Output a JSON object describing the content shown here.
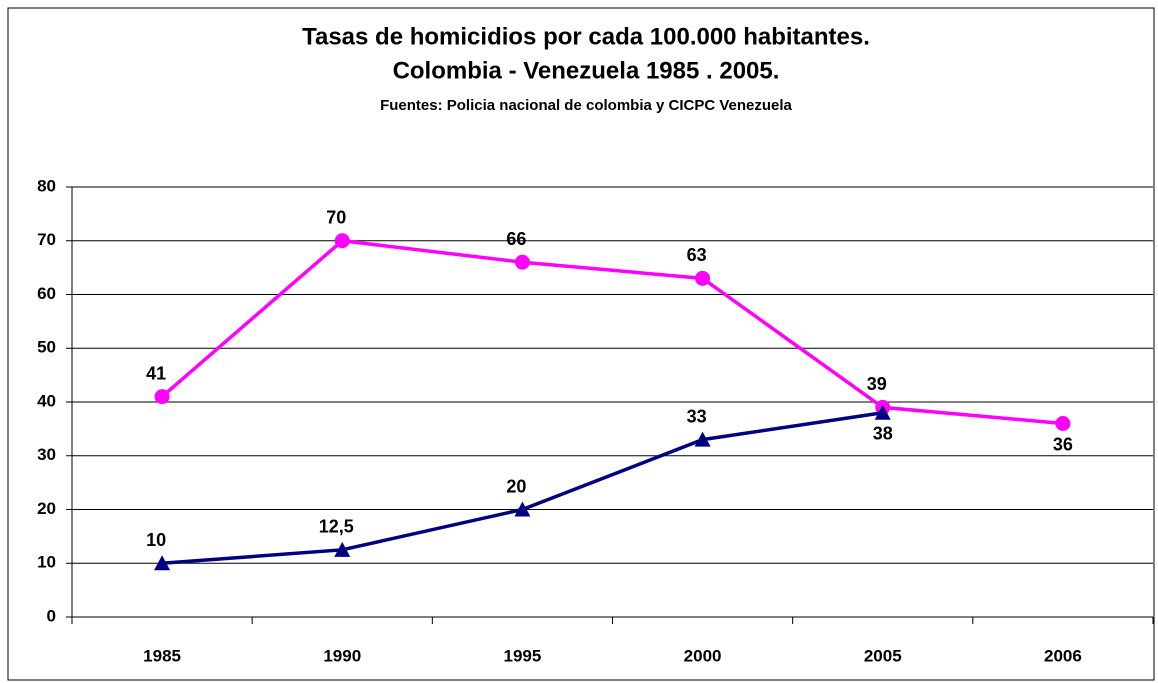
{
  "chart_data": {
    "type": "line",
    "title": [
      "Tasas de homicidios por cada 100.000 habitantes.",
      "Colombia - Venezuela 1985 . 2005."
    ],
    "subtitle": "Fuentes: Policia nacional de colombia y CICPC Venezuela",
    "categories": [
      "1985",
      "1990",
      "1995",
      "2000",
      "2005",
      "2006"
    ],
    "series": [
      {
        "color": "#ff00ff",
        "marker": "circle",
        "values": [
          41,
          70,
          66,
          63,
          39,
          36
        ]
      },
      {
        "color": "#000080",
        "marker": "triangle",
        "values": [
          10,
          12.5,
          20,
          33,
          38,
          null
        ],
        "value_labels": [
          "10",
          "12,5",
          "20",
          "33",
          "38",
          null
        ]
      }
    ],
    "ylim": [
      0,
      80
    ],
    "yticks": [
      0,
      10,
      20,
      30,
      40,
      50,
      60,
      70,
      80
    ],
    "grid": true
  }
}
